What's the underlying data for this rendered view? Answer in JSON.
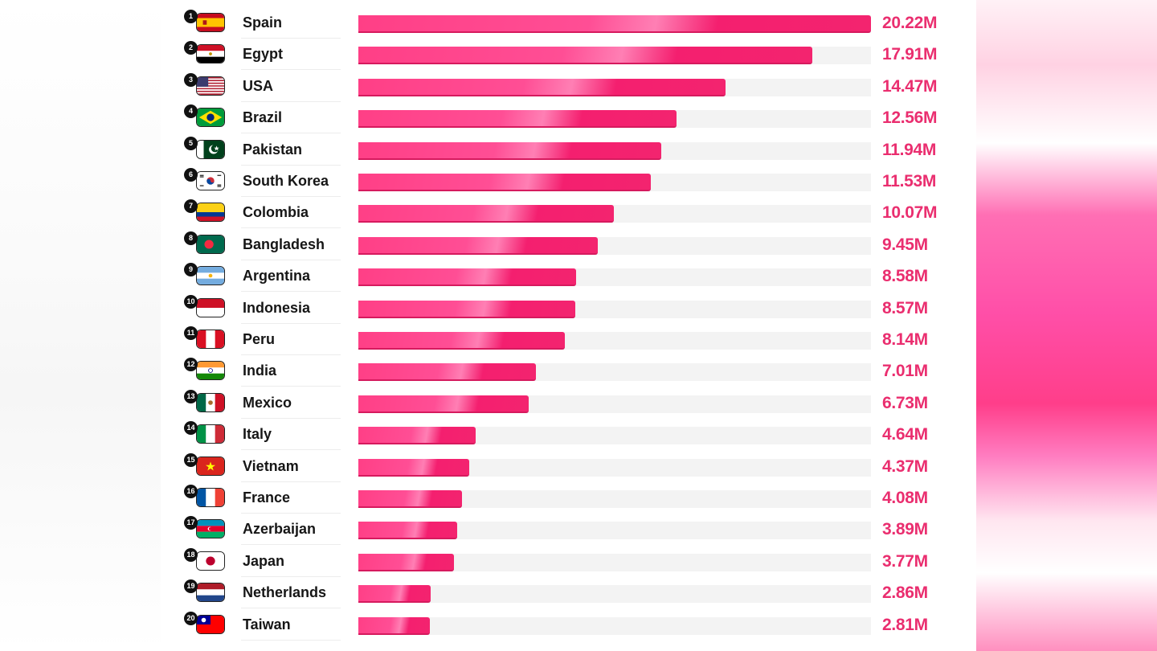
{
  "colors": {
    "bar": "#f3246f",
    "value_text": "#ea2e6f",
    "track": "#f3f3f3"
  },
  "chart_data": {
    "type": "bar",
    "orientation": "horizontal",
    "title": "",
    "xlabel": "",
    "ylabel": "",
    "grid": false,
    "xlim": [
      0,
      20.22
    ],
    "unit_suffix": "M",
    "categories": [
      "Spain",
      "Egypt",
      "USA",
      "Brazil",
      "Pakistan",
      "South Korea",
      "Colombia",
      "Bangladesh",
      "Argentina",
      "Indonesia",
      "Peru",
      "India",
      "Mexico",
      "Italy",
      "Vietnam",
      "France",
      "Azerbaijan",
      "Japan",
      "Netherlands",
      "Taiwan"
    ],
    "values": [
      20.22,
      17.91,
      14.47,
      12.56,
      11.94,
      11.53,
      10.07,
      9.45,
      8.58,
      8.57,
      8.14,
      7.01,
      6.73,
      4.64,
      4.37,
      4.08,
      3.89,
      3.77,
      2.86,
      2.81
    ],
    "ranks": [
      "1",
      "2",
      "3",
      "4",
      "5",
      "6",
      "7",
      "8",
      "9",
      "10",
      "11",
      "12",
      "13",
      "14",
      "15",
      "16",
      "17",
      "18",
      "19",
      "20"
    ],
    "value_labels": [
      "20.22M",
      "17.91M",
      "14.47M",
      "12.56M",
      "11.94M",
      "11.53M",
      "10.07M",
      "9.45M",
      "8.58M",
      "8.57M",
      "8.14M",
      "7.01M",
      "6.73M",
      "4.64M",
      "4.37M",
      "4.08M",
      "3.89M",
      "3.77M",
      "2.86M",
      "2.81M"
    ],
    "flag_icons": [
      "flag-spain-icon",
      "flag-egypt-icon",
      "flag-usa-icon",
      "flag-brazil-icon",
      "flag-pakistan-icon",
      "flag-south-korea-icon",
      "flag-colombia-icon",
      "flag-bangladesh-icon",
      "flag-argentina-icon",
      "flag-indonesia-icon",
      "flag-peru-icon",
      "flag-india-icon",
      "flag-mexico-icon",
      "flag-italy-icon",
      "flag-vietnam-icon",
      "flag-france-icon",
      "flag-azerbaijan-icon",
      "flag-japan-icon",
      "flag-netherlands-icon",
      "flag-taiwan-icon"
    ]
  }
}
